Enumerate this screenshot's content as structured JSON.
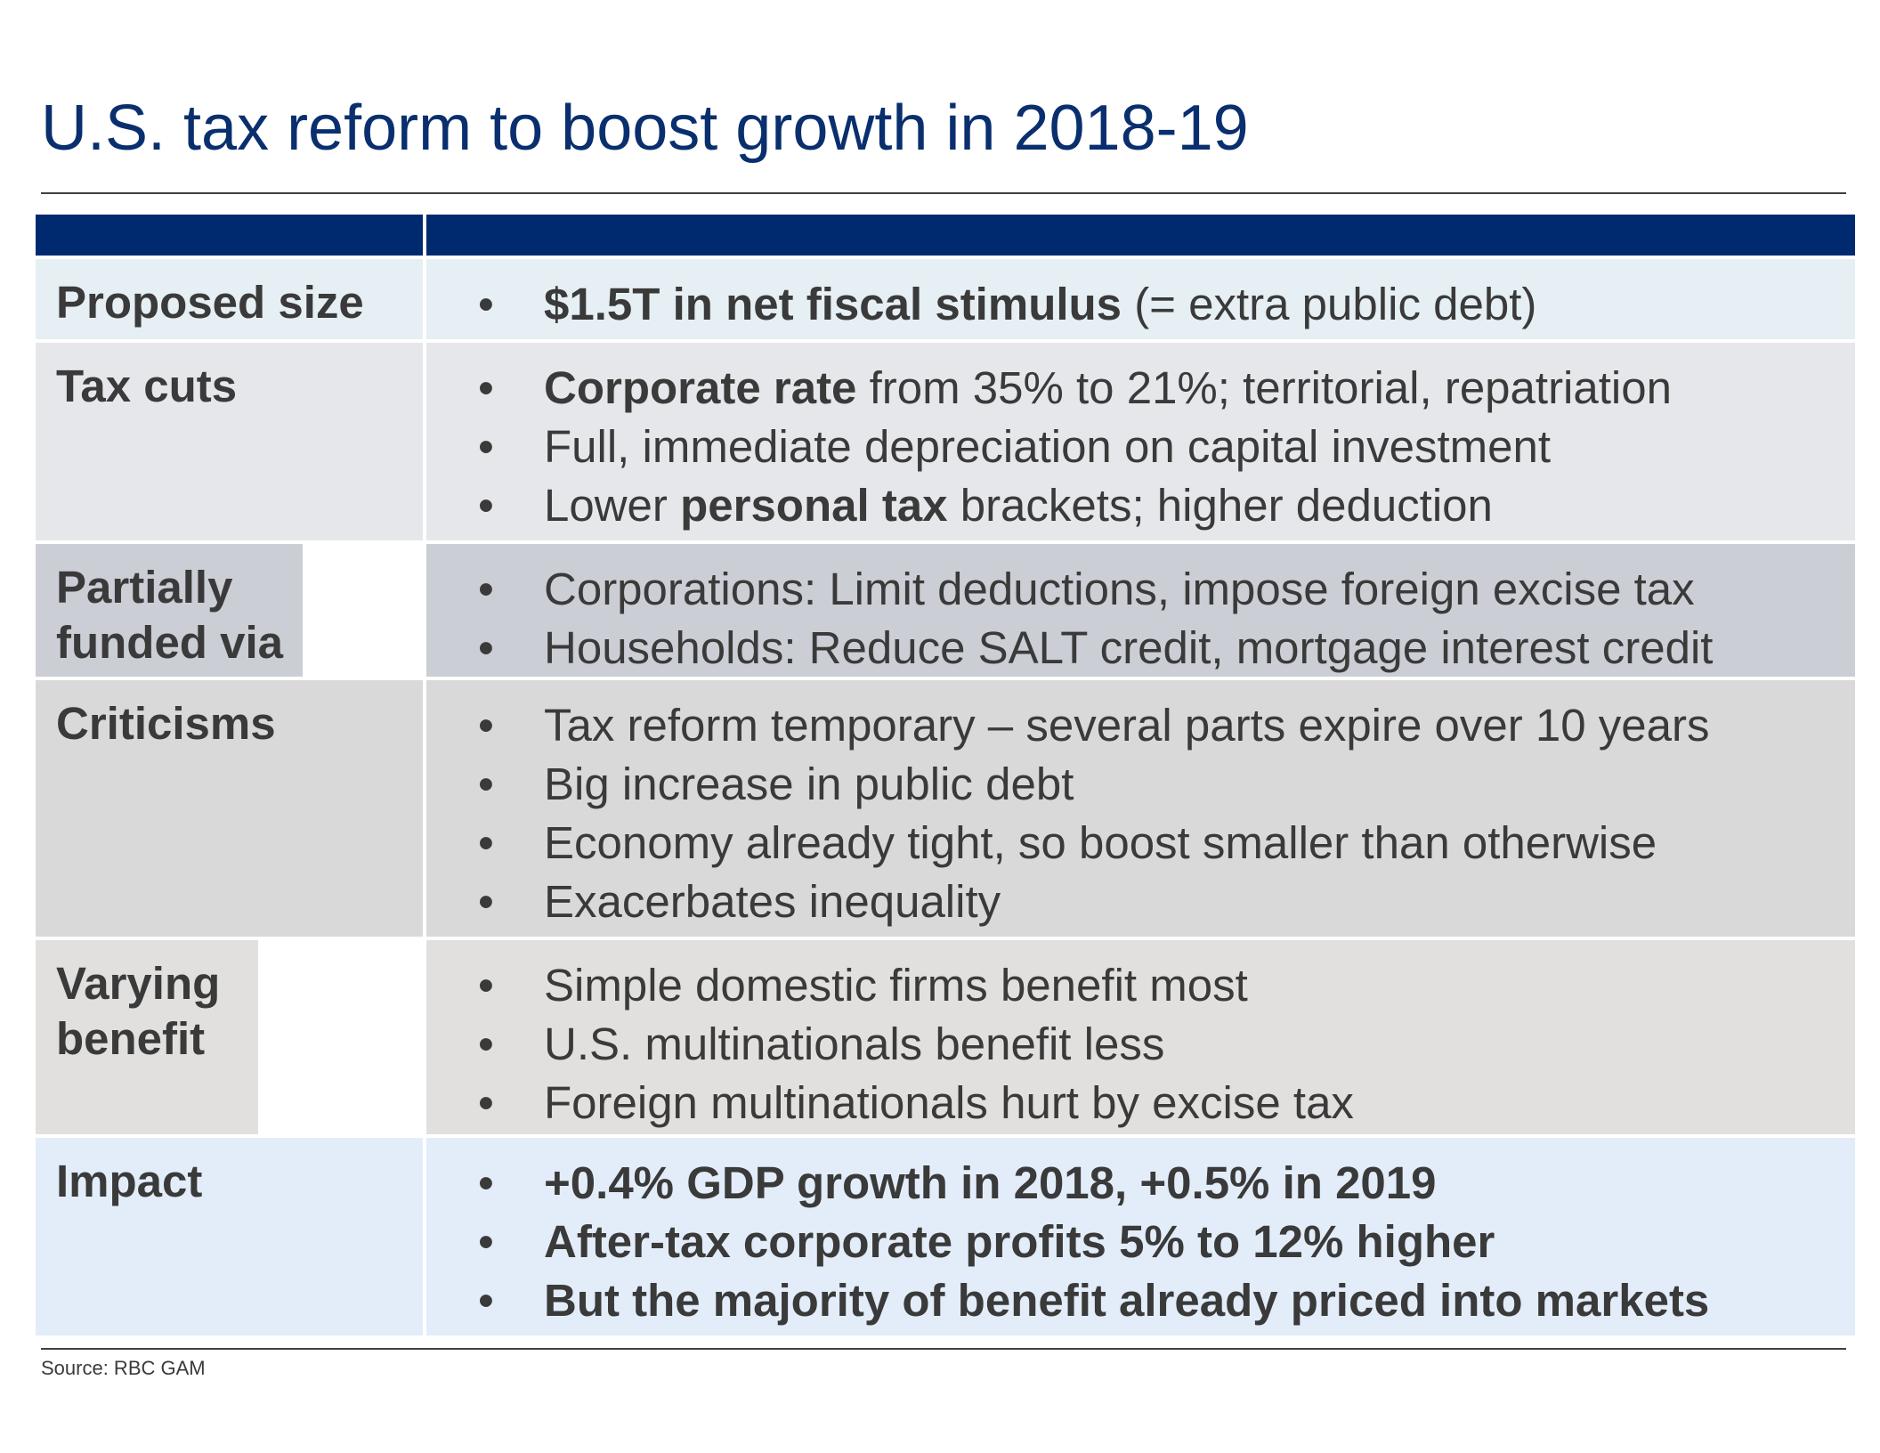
{
  "title": "U.S. tax reform to boost growth in 2018-19",
  "colors": {
    "title": "#0a2f6e",
    "header_bar": "#002a70",
    "text": "#3a3a3a"
  },
  "rows": [
    {
      "label": "Proposed size",
      "bg": "#e6eff3",
      "bullets": [
        {
          "bold": "$1.5T in net fiscal stimulus",
          "rest": " (= extra public debt)"
        }
      ]
    },
    {
      "label": "Tax cuts",
      "bg": "#e6e7eb",
      "bullets": [
        {
          "bold": "Corporate rate",
          "rest": " from 35% to 21%; territorial, repatriation"
        },
        {
          "plain": "Full, immediate depreciation on capital investment"
        },
        {
          "pre": "Lower ",
          "bold": "personal tax",
          "rest": " brackets; higher deduction"
        }
      ]
    },
    {
      "label": "Partially funded via",
      "bg": "#cbced5",
      "bullets": [
        {
          "plain": "Corporations: Limit deductions, impose foreign excise tax"
        },
        {
          "plain": "Households: Reduce SALT credit, mortgage interest credit"
        }
      ]
    },
    {
      "label": "Criticisms",
      "bg": "#d9d9d9",
      "bullets": [
        {
          "plain": "Tax reform temporary – several parts expire over 10 years"
        },
        {
          "plain": "Big increase in public debt"
        },
        {
          "plain": "Economy already tight, so boost smaller than otherwise"
        },
        {
          "plain": "Exacerbates inequality"
        }
      ]
    },
    {
      "label": "Varying benefit",
      "bg": "#e2e0de",
      "bullets": [
        {
          "plain": "Simple domestic firms benefit most"
        },
        {
          "plain": "U.S. multinationals benefit less"
        },
        {
          "plain": "Foreign multinationals hurt by excise tax"
        }
      ]
    },
    {
      "label": "Impact",
      "bg": "#e3edf9",
      "bullets": [
        {
          "bold": "+0.4% GDP growth in 2018, +0.5% in 2019"
        },
        {
          "bold": "After-tax corporate profits 5% to 12% higher"
        },
        {
          "bold": "But the majority of benefit already priced into markets"
        }
      ]
    }
  ],
  "source": "Source: RBC GAM"
}
